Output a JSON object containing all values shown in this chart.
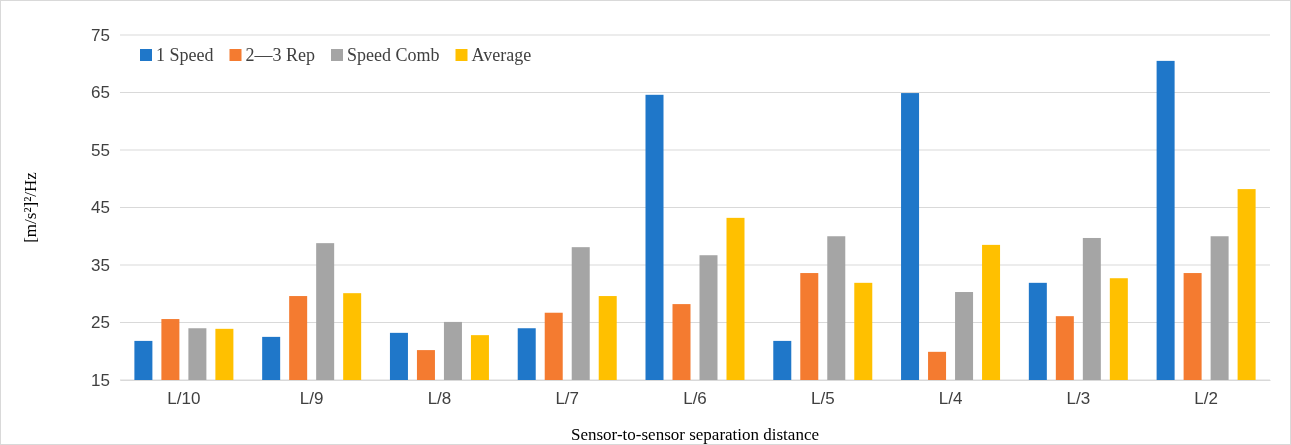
{
  "chart_data": {
    "type": "bar",
    "xlabel": "Sensor-to-sensor separation distance",
    "ylabel": "[m/s²]²/Hz",
    "categories": [
      "L/10",
      "L/9",
      "L/8",
      "L/7",
      "L/6",
      "L/5",
      "L/4",
      "L/3",
      "L/2"
    ],
    "series": [
      {
        "name": "1 Speed",
        "color": "#1f77c9",
        "values": [
          21.8,
          22.5,
          23.2,
          24.0,
          64.6,
          21.8,
          64.9,
          31.9,
          70.5
        ]
      },
      {
        "name": "2—3 Rep",
        "color": "#f47b30",
        "values": [
          25.6,
          29.6,
          20.2,
          26.7,
          28.2,
          33.6,
          19.9,
          26.1,
          33.6
        ]
      },
      {
        "name": "Speed Comb",
        "color": "#a5a5a5",
        "values": [
          24.0,
          38.8,
          25.1,
          38.1,
          36.7,
          40.0,
          30.3,
          39.7,
          40.0
        ]
      },
      {
        "name": "Average",
        "color": "#ffc000",
        "values": [
          23.9,
          30.1,
          22.8,
          29.6,
          43.2,
          31.9,
          38.5,
          32.7,
          48.2
        ]
      }
    ],
    "ylim": [
      15,
      75
    ],
    "yticks": [
      15,
      25,
      35,
      45,
      55,
      65,
      75
    ],
    "grid": "y",
    "legend": "top left"
  }
}
